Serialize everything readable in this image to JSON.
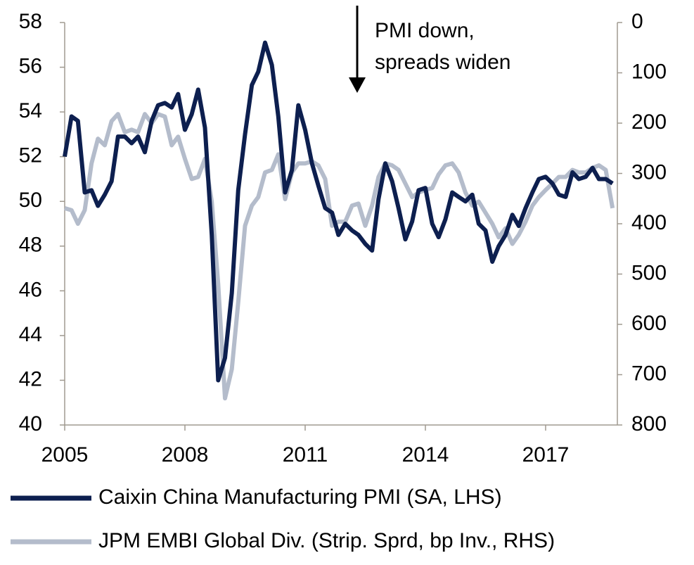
{
  "chart_data": {
    "type": "line",
    "annotation": [
      "PMI down,",
      "spreads widen"
    ],
    "x": [
      2005,
      2005.17,
      2005.33,
      2005.5,
      2005.67,
      2005.83,
      2006,
      2006.17,
      2006.33,
      2006.5,
      2006.67,
      2006.83,
      2007,
      2007.17,
      2007.33,
      2007.5,
      2007.67,
      2007.83,
      2008,
      2008.17,
      2008.33,
      2008.5,
      2008.67,
      2008.83,
      2009,
      2009.17,
      2009.33,
      2009.5,
      2009.67,
      2009.83,
      2010,
      2010.17,
      2010.33,
      2010.5,
      2010.67,
      2010.83,
      2011,
      2011.17,
      2011.33,
      2011.5,
      2011.67,
      2011.83,
      2012,
      2012.17,
      2012.33,
      2012.5,
      2012.67,
      2012.83,
      2013,
      2013.17,
      2013.33,
      2013.5,
      2013.67,
      2013.83,
      2014,
      2014.17,
      2014.33,
      2014.5,
      2014.67,
      2014.83,
      2015,
      2015.17,
      2015.33,
      2015.5,
      2015.67,
      2015.83,
      2016,
      2016.17,
      2016.33,
      2016.5,
      2016.67,
      2016.83,
      2017,
      2017.17,
      2017.33,
      2017.5,
      2017.67,
      2017.83,
      2018,
      2018.17,
      2018.33,
      2018.5,
      2018.67
    ],
    "series": [
      {
        "name": "Caixin China Manufacturing PMI (SA, LHS)",
        "color": "#0d1f4f",
        "values": [
          52.0,
          53.8,
          53.6,
          50.4,
          50.5,
          49.8,
          50.3,
          50.9,
          52.9,
          52.9,
          52.6,
          52.9,
          52.2,
          53.6,
          54.3,
          54.4,
          54.2,
          54.8,
          53.2,
          53.9,
          55.0,
          53.3,
          48.5,
          42.0,
          43.0,
          45.9,
          50.5,
          53.0,
          55.2,
          55.8,
          57.1,
          56.1,
          53.8,
          50.4,
          51.4,
          54.3,
          53.2,
          51.7,
          50.7,
          49.7,
          49.5,
          48.5,
          49.0,
          48.7,
          48.5,
          48.1,
          47.8,
          50.1,
          51.7,
          50.9,
          49.7,
          48.3,
          49.1,
          50.5,
          50.6,
          49.0,
          48.4,
          49.2,
          50.4,
          50.2,
          50.0,
          50.3,
          49.0,
          48.7,
          47.3,
          48.0,
          48.5,
          49.4,
          48.9,
          49.7,
          50.4,
          51.0,
          51.1,
          50.8,
          50.3,
          50.2,
          51.3,
          51.0,
          51.1,
          51.5,
          51.0,
          51.0,
          50.8
        ]
      },
      {
        "name": "JPM EMBI Global Div. (Strip. Sprd, bp Inv., RHS)",
        "color": "#b4bccb",
        "axis": "y2",
        "values": [
          369,
          373,
          400,
          373,
          280,
          231,
          244,
          196,
          182,
          218,
          213,
          218,
          182,
          200,
          182,
          187,
          244,
          227,
          271,
          311,
          307,
          271,
          356,
          520,
          747,
          689,
          556,
          404,
          364,
          347,
          298,
          293,
          262,
          351,
          298,
          280,
          280,
          276,
          284,
          311,
          404,
          396,
          396,
          364,
          360,
          404,
          364,
          307,
          280,
          284,
          293,
          320,
          347,
          338,
          333,
          329,
          302,
          284,
          280,
          298,
          338,
          364,
          356,
          378,
          400,
          427,
          409,
          440,
          422,
          396,
          364,
          347,
          333,
          320,
          307,
          307,
          293,
          298,
          298,
          289,
          284,
          293,
          369
        ]
      }
    ],
    "xlim": [
      2005,
      2018.79
    ],
    "xticks": [
      2005,
      2008,
      2011,
      2014,
      2017
    ],
    "ylim": [
      40,
      58
    ],
    "yticks": [
      40,
      42,
      44,
      46,
      48,
      50,
      52,
      54,
      56,
      58
    ],
    "y2lim": [
      800,
      0
    ],
    "y2ticks": [
      800,
      700,
      600,
      500,
      400,
      300,
      200,
      100,
      0
    ]
  }
}
